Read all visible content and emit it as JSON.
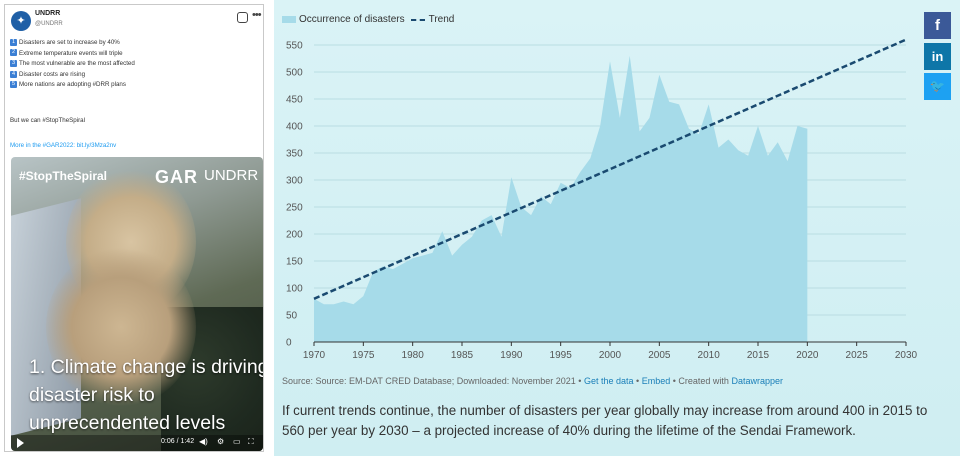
{
  "tweet": {
    "name": "UNDRR",
    "handle": "@UNDRR",
    "list": [
      {
        "num": "1",
        "text": "Disasters are set to increase by 40%"
      },
      {
        "num": "2",
        "text": "Extreme temperature events will triple"
      },
      {
        "num": "3",
        "text": "The most vulnerable are the most affected"
      },
      {
        "num": "4",
        "text": "Disaster costs are rising"
      },
      {
        "num": "5",
        "text": "More nations are adopting #DRR plans"
      }
    ],
    "spiral_text": "But we can #StopTheSpiral",
    "more_text": "More in the #GAR2022: bit.ly/3Mza2nv",
    "video": {
      "hashtag": "#StopTheSpiral",
      "gar": "GAR",
      "org": "UNDRR",
      "caption": "1. Climate change is driving disaster risk to unprecendented levels",
      "time": "0:06 / 1:42"
    }
  },
  "chart_panel": {
    "legend_area": "Occurrence of disasters",
    "legend_trend": "Trend",
    "source_prefix": "Source: Source: EM-DAT CRED Database; Downloaded: November 2021 •",
    "get_data": "Get the data",
    "embed": "Embed",
    "created_with": "• Created with",
    "datawrapper": "Datawrapper",
    "caption": "If current trends continue, the number of disasters per year globally may increase from around 400 in 2015 to 560 per year by 2030 – a projected increase of 40% during the lifetime of the Sendai Framework.",
    "share": {
      "facebook": "f",
      "linkedin": "in",
      "twitter": "🐦"
    }
  },
  "chart_data": {
    "type": "area",
    "title": "",
    "xlabel": "",
    "ylabel": "",
    "xlim": [
      1970,
      2030
    ],
    "ylim": [
      0,
      550
    ],
    "x_ticks": [
      1970,
      1975,
      1980,
      1985,
      1990,
      1995,
      2000,
      2005,
      2010,
      2015,
      2020,
      2025,
      2030
    ],
    "y_ticks": [
      0,
      50,
      100,
      150,
      200,
      250,
      300,
      350,
      400,
      450,
      500,
      550
    ],
    "grid": true,
    "legend": "top-left",
    "colors": {
      "area": "#a6dbe9",
      "trend": "#1a4a70"
    },
    "series": [
      {
        "name": "Occurrence of disasters",
        "x": [
          1970,
          1971,
          1972,
          1973,
          1974,
          1975,
          1976,
          1977,
          1978,
          1979,
          1980,
          1981,
          1982,
          1983,
          1984,
          1985,
          1986,
          1987,
          1988,
          1989,
          1990,
          1991,
          1992,
          1993,
          1994,
          1995,
          1996,
          1997,
          1998,
          1999,
          2000,
          2001,
          2002,
          2003,
          2004,
          2005,
          2006,
          2007,
          2008,
          2009,
          2010,
          2011,
          2012,
          2013,
          2014,
          2015,
          2016,
          2017,
          2018,
          2019,
          2020
        ],
        "values": [
          80,
          70,
          70,
          75,
          70,
          85,
          130,
          140,
          135,
          145,
          155,
          160,
          165,
          205,
          160,
          180,
          195,
          225,
          235,
          195,
          305,
          250,
          235,
          270,
          255,
          295,
          285,
          315,
          340,
          400,
          520,
          415,
          530,
          390,
          415,
          495,
          445,
          440,
          395,
          385,
          440,
          360,
          375,
          355,
          345,
          400,
          345,
          370,
          335,
          400,
          395
        ]
      },
      {
        "name": "Trend",
        "x": [
          1970,
          2030
        ],
        "values": [
          80,
          560
        ]
      }
    ]
  }
}
